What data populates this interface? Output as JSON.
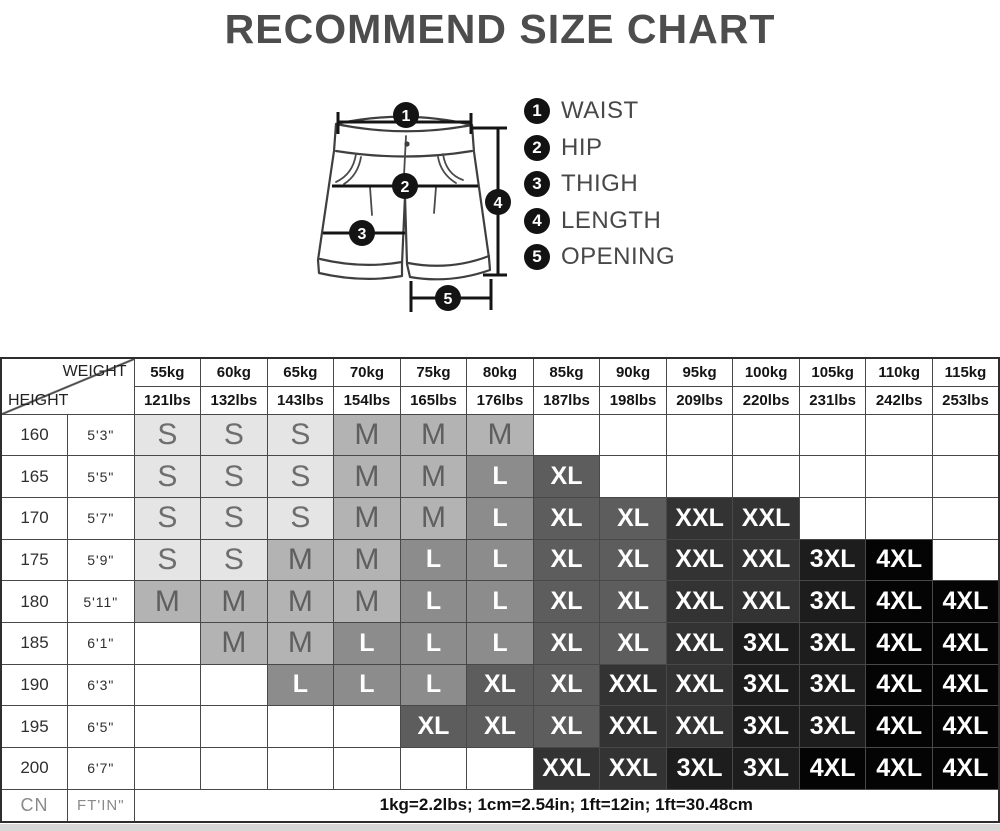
{
  "title": "RECOMMEND SIZE CHART",
  "diagram": {
    "callouts": [
      "1",
      "2",
      "3",
      "4",
      "5"
    ]
  },
  "legend": {
    "items": [
      {
        "num": "1",
        "label": "WAIST"
      },
      {
        "num": "2",
        "label": "HIP"
      },
      {
        "num": "3",
        "label": "THIGH"
      },
      {
        "num": "4",
        "label": "LENGTH"
      },
      {
        "num": "5",
        "label": "OPENING"
      }
    ]
  },
  "chart_data": {
    "type": "table",
    "title": "RECOMMEND SIZE CHART",
    "corner": {
      "top_right": "WEIGHT",
      "bottom_left": "HEIGHT"
    },
    "weights_kg": [
      "55kg",
      "60kg",
      "65kg",
      "70kg",
      "75kg",
      "80kg",
      "85kg",
      "90kg",
      "95kg",
      "100kg",
      "105kg",
      "110kg",
      "115kg"
    ],
    "weights_lbs": [
      "121lbs",
      "132lbs",
      "143lbs",
      "154lbs",
      "165lbs",
      "176lbs",
      "187lbs",
      "198lbs",
      "209lbs",
      "220lbs",
      "231lbs",
      "242lbs",
      "253lbs"
    ],
    "rows": [
      {
        "cm": "160",
        "ftin": "5'3\"",
        "sizes": [
          "S",
          "S",
          "S",
          "M",
          "M",
          "M",
          "",
          "",
          "",
          "",
          "",
          "",
          ""
        ]
      },
      {
        "cm": "165",
        "ftin": "5'5\"",
        "sizes": [
          "S",
          "S",
          "S",
          "M",
          "M",
          "L",
          "XL",
          "",
          "",
          "",
          "",
          "",
          ""
        ]
      },
      {
        "cm": "170",
        "ftin": "5'7\"",
        "sizes": [
          "S",
          "S",
          "S",
          "M",
          "M",
          "L",
          "XL",
          "XL",
          "XXL",
          "XXL",
          "",
          "",
          ""
        ]
      },
      {
        "cm": "175",
        "ftin": "5'9\"",
        "sizes": [
          "S",
          "S",
          "M",
          "M",
          "L",
          "L",
          "XL",
          "XL",
          "XXL",
          "XXL",
          "3XL",
          "4XL",
          ""
        ]
      },
      {
        "cm": "180",
        "ftin": "5'11\"",
        "sizes": [
          "M",
          "M",
          "M",
          "M",
          "L",
          "L",
          "XL",
          "XL",
          "XXL",
          "XXL",
          "3XL",
          "4XL",
          "4XL"
        ]
      },
      {
        "cm": "185",
        "ftin": "6'1\"",
        "sizes": [
          "",
          "M",
          "M",
          "L",
          "L",
          "L",
          "XL",
          "XL",
          "XXL",
          "3XL",
          "3XL",
          "4XL",
          "4XL"
        ]
      },
      {
        "cm": "190",
        "ftin": "6'3\"",
        "sizes": [
          "",
          "",
          "L",
          "L",
          "L",
          "XL",
          "XL",
          "XXL",
          "XXL",
          "3XL",
          "3XL",
          "4XL",
          "4XL"
        ]
      },
      {
        "cm": "195",
        "ftin": "6'5\"",
        "sizes": [
          "",
          "",
          "",
          "",
          "XL",
          "XL",
          "XL",
          "XXL",
          "XXL",
          "3XL",
          "3XL",
          "4XL",
          "4XL"
        ]
      },
      {
        "cm": "200",
        "ftin": "6'7\"",
        "sizes": [
          "",
          "",
          "",
          "",
          "",
          "",
          "XXL",
          "XXL",
          "3XL",
          "3XL",
          "4XL",
          "4XL",
          "4XL"
        ]
      }
    ],
    "footer": {
      "cn": "CN",
      "ftin": "FT'IN\"",
      "note": "1kg=2.2lbs; 1cm=2.54in; 1ft=12in; 1ft=30.48cm"
    },
    "size_styles": {
      "S": {
        "bg": "#e5e5e5",
        "fg": "#6e6e6e"
      },
      "M": {
        "bg": "#b3b3b3",
        "fg": "#5f5f5f"
      },
      "L": {
        "bg": "#8c8c8c",
        "fg": "#ffffff"
      },
      "XL": {
        "bg": "#5d5d5d",
        "fg": "#ffffff"
      },
      "XXL": {
        "bg": "#333333",
        "fg": "#ffffff"
      },
      "3XL": {
        "bg": "#1d1d1d",
        "fg": "#ffffff"
      },
      "4XL": {
        "bg": "#040404",
        "fg": "#ffffff"
      }
    }
  }
}
